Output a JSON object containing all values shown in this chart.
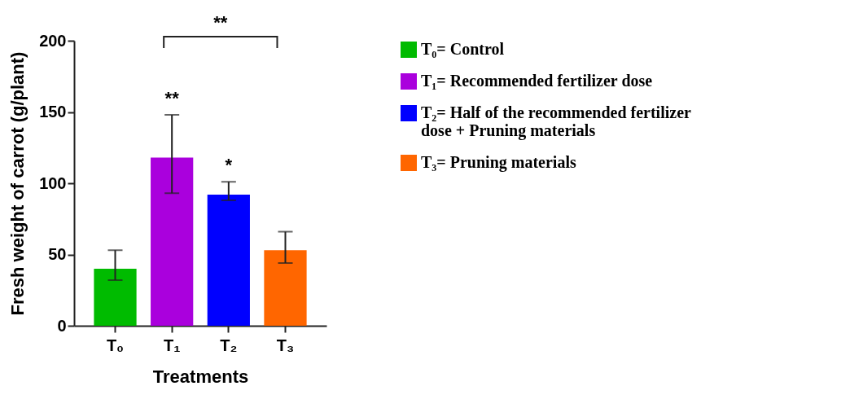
{
  "chart_data": {
    "type": "bar",
    "xlabel": "Treatments",
    "ylabel": "Fresh weight of carrot (g/plant)",
    "categories": [
      "T₀",
      "T₁",
      "T₂",
      "T₃"
    ],
    "series": [
      {
        "name": "T₀= Control",
        "color": "#00bb00",
        "values": [
          40,
          null,
          null,
          null
        ],
        "errors": [
          [
            32,
            53
          ],
          null,
          null,
          null
        ]
      },
      {
        "name": "T₁= Recommended fertilizer dose",
        "color": "#aa00dd",
        "values": [
          null,
          118,
          null,
          null
        ],
        "errors": [
          null,
          [
            93,
            148
          ],
          null,
          null
        ]
      },
      {
        "name": "T₂= Half of the recommended fertilizer dose + Pruning materials",
        "color": "#0000ff",
        "values": [
          null,
          null,
          92,
          null
        ],
        "errors": [
          null,
          null,
          [
            88,
            101
          ],
          null
        ]
      },
      {
        "name": "T₃= Pruning materials",
        "color": "#ff6600",
        "values": [
          null,
          null,
          null,
          53
        ],
        "errors": [
          null,
          null,
          null,
          [
            44,
            66
          ]
        ]
      }
    ],
    "ylim": [
      0,
      200
    ],
    "yticks": [
      0,
      50,
      100,
      150,
      200
    ],
    "grid": false,
    "legend": "right",
    "annotations": [
      {
        "text": "**",
        "x": "T₁",
        "y": 148
      },
      {
        "text": "*",
        "x": "T₂",
        "y": 101
      },
      "**"
    ]
  }
}
